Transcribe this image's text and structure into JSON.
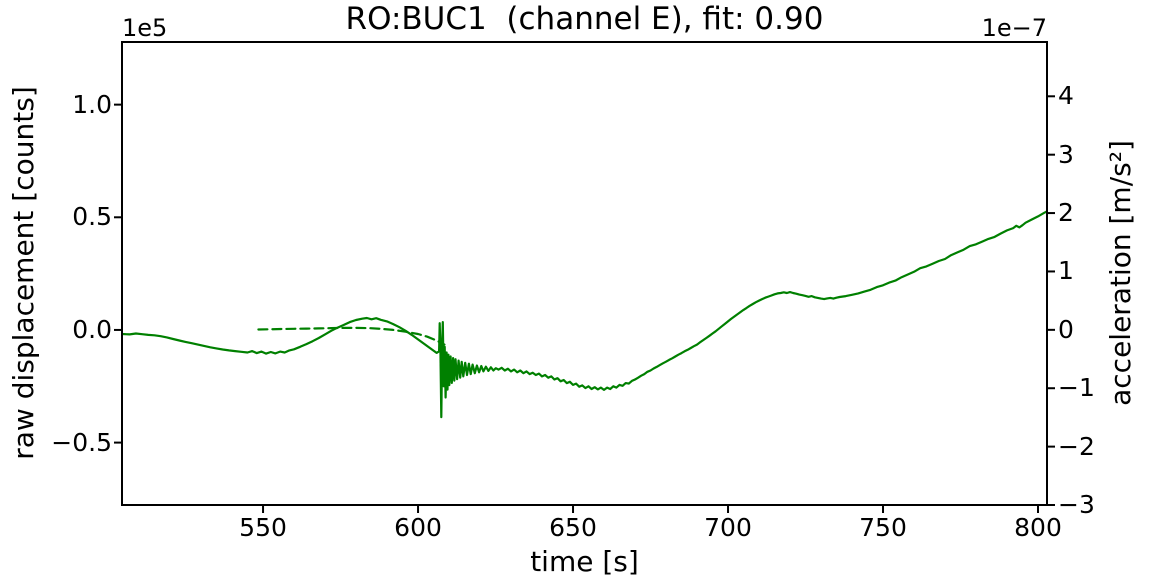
{
  "chart_data": {
    "type": "line",
    "title": "RO:BUC1  (channel E), fit: 0.90",
    "xlabel": "time [s]",
    "ylabel_left": "raw displacement [counts]",
    "ylabel_right": "acceleration [m/s²]",
    "offset_left": "1e5",
    "offset_right": "1e−7",
    "grid": false,
    "legend": "none",
    "axis_color": "#000000",
    "xlim": [
      504.5,
      802.9
    ],
    "xticks": [
      550,
      600,
      650,
      700,
      750,
      800
    ],
    "xtick_labels": [
      "550",
      "600",
      "650",
      "700",
      "750",
      "800"
    ],
    "ylim_left": [
      -0.777,
      1.278
    ],
    "yticks_left": [
      -0.5,
      0.0,
      0.5,
      1.0
    ],
    "ytick_labels_left": [
      "−0.5",
      "0.0",
      "0.5",
      "1.0"
    ],
    "ylim_right": [
      -3.0,
      4.93
    ],
    "yticks_right": [
      -3,
      -2,
      -1,
      0,
      1,
      2,
      3,
      4
    ],
    "ytick_labels_right": [
      "−3",
      "−2",
      "−1",
      "0",
      "1",
      "2",
      "3",
      "4"
    ],
    "series": [
      {
        "name": "raw displacement (counts, ×1e5)",
        "axis": "left",
        "style": "solid",
        "color": "#008000",
        "points": [
          [
            504.5,
            -0.018
          ],
          [
            507,
            -0.02
          ],
          [
            509,
            -0.016
          ],
          [
            511,
            -0.019
          ],
          [
            513,
            -0.022
          ],
          [
            515,
            -0.024
          ],
          [
            517,
            -0.028
          ],
          [
            519,
            -0.033
          ],
          [
            521,
            -0.04
          ],
          [
            523,
            -0.047
          ],
          [
            525,
            -0.053
          ],
          [
            527,
            -0.059
          ],
          [
            529,
            -0.065
          ],
          [
            531,
            -0.071
          ],
          [
            533,
            -0.077
          ],
          [
            535,
            -0.082
          ],
          [
            537,
            -0.087
          ],
          [
            539,
            -0.091
          ],
          [
            541,
            -0.094
          ],
          [
            543,
            -0.097
          ],
          [
            545,
            -0.1
          ],
          [
            546.5,
            -0.094
          ],
          [
            548,
            -0.103
          ],
          [
            549.5,
            -0.096
          ],
          [
            551,
            -0.105
          ],
          [
            552.5,
            -0.098
          ],
          [
            554,
            -0.104
          ],
          [
            555.5,
            -0.096
          ],
          [
            557,
            -0.1
          ],
          [
            558.5,
            -0.091
          ],
          [
            560,
            -0.086
          ],
          [
            562,
            -0.075
          ],
          [
            564,
            -0.063
          ],
          [
            566,
            -0.05
          ],
          [
            568,
            -0.036
          ],
          [
            570,
            -0.02
          ],
          [
            572,
            -0.004
          ],
          [
            574,
            0.01
          ],
          [
            576,
            0.022
          ],
          [
            578,
            0.035
          ],
          [
            580,
            0.044
          ],
          [
            582,
            0.05
          ],
          [
            583.5,
            0.053
          ],
          [
            585,
            0.047
          ],
          [
            586.5,
            0.052
          ],
          [
            588,
            0.045
          ],
          [
            590,
            0.038
          ],
          [
            592,
            0.026
          ],
          [
            594,
            0.012
          ],
          [
            596,
            -0.004
          ],
          [
            598,
            -0.022
          ],
          [
            600,
            -0.042
          ],
          [
            602,
            -0.062
          ],
          [
            604,
            -0.082
          ],
          [
            606,
            -0.102
          ],
          [
            606.8,
            -0.095
          ],
          [
            607,
            0.03
          ],
          [
            607.2,
            -0.085
          ],
          [
            607.5,
            -0.387
          ],
          [
            607.8,
            -0.055
          ],
          [
            608,
            0.035
          ],
          [
            608.3,
            -0.25
          ],
          [
            608.6,
            -0.075
          ],
          [
            608.9,
            -0.3
          ],
          [
            609.2,
            -0.1
          ],
          [
            609.5,
            -0.265
          ],
          [
            609.8,
            -0.11
          ],
          [
            610.1,
            -0.245
          ],
          [
            610.5,
            -0.118
          ],
          [
            610.9,
            -0.235
          ],
          [
            611.3,
            -0.125
          ],
          [
            611.7,
            -0.225
          ],
          [
            612.1,
            -0.13
          ],
          [
            612.6,
            -0.218
          ],
          [
            613.1,
            -0.136
          ],
          [
            613.6,
            -0.212
          ],
          [
            614.1,
            -0.142
          ],
          [
            614.6,
            -0.206
          ],
          [
            615.2,
            -0.146
          ],
          [
            615.8,
            -0.2
          ],
          [
            616.4,
            -0.15
          ],
          [
            617,
            -0.196
          ],
          [
            617.6,
            -0.154
          ],
          [
            618.3,
            -0.192
          ],
          [
            619,
            -0.158
          ],
          [
            619.7,
            -0.188
          ],
          [
            620.4,
            -0.16
          ],
          [
            621.1,
            -0.184
          ],
          [
            621.9,
            -0.163
          ],
          [
            622.7,
            -0.182
          ],
          [
            623.5,
            -0.166
          ],
          [
            624.3,
            -0.18
          ],
          [
            625.1,
            -0.17
          ],
          [
            626,
            -0.176
          ],
          [
            627,
            -0.168
          ],
          [
            628,
            -0.18
          ],
          [
            629,
            -0.172
          ],
          [
            630,
            -0.184
          ],
          [
            631,
            -0.176
          ],
          [
            632,
            -0.188
          ],
          [
            633,
            -0.18
          ],
          [
            634,
            -0.192
          ],
          [
            635,
            -0.184
          ],
          [
            636,
            -0.196
          ],
          [
            637,
            -0.19
          ],
          [
            638,
            -0.2
          ],
          [
            639,
            -0.194
          ],
          [
            640,
            -0.206
          ],
          [
            641,
            -0.2
          ],
          [
            642,
            -0.212
          ],
          [
            643,
            -0.206
          ],
          [
            644,
            -0.22
          ],
          [
            645,
            -0.214
          ],
          [
            646,
            -0.228
          ],
          [
            647,
            -0.222
          ],
          [
            648,
            -0.236
          ],
          [
            649,
            -0.23
          ],
          [
            650,
            -0.244
          ],
          [
            651,
            -0.238
          ],
          [
            652,
            -0.252
          ],
          [
            653,
            -0.246
          ],
          [
            654,
            -0.258
          ],
          [
            655,
            -0.25
          ],
          [
            656,
            -0.262
          ],
          [
            657,
            -0.254
          ],
          [
            658,
            -0.264
          ],
          [
            659,
            -0.256
          ],
          [
            660,
            -0.266
          ],
          [
            661,
            -0.256
          ],
          [
            662,
            -0.262
          ],
          [
            663,
            -0.25
          ],
          [
            664,
            -0.256
          ],
          [
            665,
            -0.244
          ],
          [
            666,
            -0.248
          ],
          [
            667,
            -0.236
          ],
          [
            668,
            -0.238
          ],
          [
            669,
            -0.226
          ],
          [
            670,
            -0.22
          ],
          [
            671,
            -0.212
          ],
          [
            672,
            -0.203
          ],
          [
            673,
            -0.196
          ],
          [
            674,
            -0.186
          ],
          [
            675,
            -0.18
          ],
          [
            676,
            -0.171
          ],
          [
            677,
            -0.164
          ],
          [
            678,
            -0.156
          ],
          [
            679,
            -0.148
          ],
          [
            680,
            -0.141
          ],
          [
            681,
            -0.133
          ],
          [
            682,
            -0.126
          ],
          [
            683,
            -0.118
          ],
          [
            684,
            -0.11
          ],
          [
            685,
            -0.103
          ],
          [
            686,
            -0.095
          ],
          [
            687,
            -0.088
          ],
          [
            688,
            -0.08
          ],
          [
            689,
            -0.072
          ],
          [
            690,
            -0.065
          ],
          [
            691,
            -0.055
          ],
          [
            692,
            -0.045
          ],
          [
            693,
            -0.036
          ],
          [
            694,
            -0.026
          ],
          [
            695,
            -0.016
          ],
          [
            696,
            -0.006
          ],
          [
            697,
            0.005
          ],
          [
            698,
            0.016
          ],
          [
            699,
            0.027
          ],
          [
            700,
            0.038
          ],
          [
            701,
            0.049
          ],
          [
            702,
            0.059
          ],
          [
            703,
            0.069
          ],
          [
            704,
            0.079
          ],
          [
            705,
            0.089
          ],
          [
            706,
            0.098
          ],
          [
            707,
            0.107
          ],
          [
            708,
            0.115
          ],
          [
            709,
            0.123
          ],
          [
            710,
            0.13
          ],
          [
            711,
            0.137
          ],
          [
            712,
            0.143
          ],
          [
            713,
            0.148
          ],
          [
            714,
            0.153
          ],
          [
            715,
            0.158
          ],
          [
            716,
            0.162
          ],
          [
            717,
            0.164
          ],
          [
            718,
            0.167
          ],
          [
            719,
            0.164
          ],
          [
            720,
            0.168
          ],
          [
            721,
            0.164
          ],
          [
            722,
            0.161
          ],
          [
            723,
            0.157
          ],
          [
            724,
            0.154
          ],
          [
            725,
            0.151
          ],
          [
            726,
            0.147
          ],
          [
            727,
            0.15
          ],
          [
            728,
            0.145
          ],
          [
            729,
            0.142
          ],
          [
            730,
            0.139
          ],
          [
            731,
            0.137
          ],
          [
            732,
            0.14
          ],
          [
            733,
            0.142
          ],
          [
            734,
            0.139
          ],
          [
            735,
            0.143
          ],
          [
            736,
            0.146
          ],
          [
            738,
            0.15
          ],
          [
            740,
            0.156
          ],
          [
            742,
            0.162
          ],
          [
            744,
            0.17
          ],
          [
            746,
            0.178
          ],
          [
            748,
            0.19
          ],
          [
            750,
            0.198
          ],
          [
            752,
            0.21
          ],
          [
            754,
            0.219
          ],
          [
            756,
            0.234
          ],
          [
            758,
            0.246
          ],
          [
            760,
            0.258
          ],
          [
            762,
            0.274
          ],
          [
            764,
            0.282
          ],
          [
            766,
            0.294
          ],
          [
            768,
            0.306
          ],
          [
            770,
            0.315
          ],
          [
            772,
            0.332
          ],
          [
            774,
            0.344
          ],
          [
            776,
            0.356
          ],
          [
            778,
            0.372
          ],
          [
            780,
            0.38
          ],
          [
            782,
            0.392
          ],
          [
            784,
            0.404
          ],
          [
            786,
            0.413
          ],
          [
            788,
            0.428
          ],
          [
            790,
            0.442
          ],
          [
            792,
            0.452
          ],
          [
            793,
            0.462
          ],
          [
            794,
            0.455
          ],
          [
            795,
            0.465
          ],
          [
            796,
            0.476
          ],
          [
            798,
            0.49
          ],
          [
            800,
            0.504
          ],
          [
            802,
            0.52
          ],
          [
            802.9,
            0.526
          ]
        ]
      },
      {
        "name": "fit (dashed)",
        "axis": "left",
        "style": "dashed",
        "color": "#008000",
        "points": [
          [
            548.5,
            0.002
          ],
          [
            552,
            0.003
          ],
          [
            556,
            0.004
          ],
          [
            560,
            0.005
          ],
          [
            564,
            0.006
          ],
          [
            568,
            0.007
          ],
          [
            572,
            0.008
          ],
          [
            576,
            0.009
          ],
          [
            580,
            0.009
          ],
          [
            584,
            0.008
          ],
          [
            588,
            0.005
          ],
          [
            592,
            0.0
          ],
          [
            596,
            -0.008
          ],
          [
            600,
            -0.018
          ],
          [
            603,
            -0.03
          ],
          [
            606,
            -0.047
          ],
          [
            608.5,
            -0.065
          ]
        ]
      }
    ]
  }
}
